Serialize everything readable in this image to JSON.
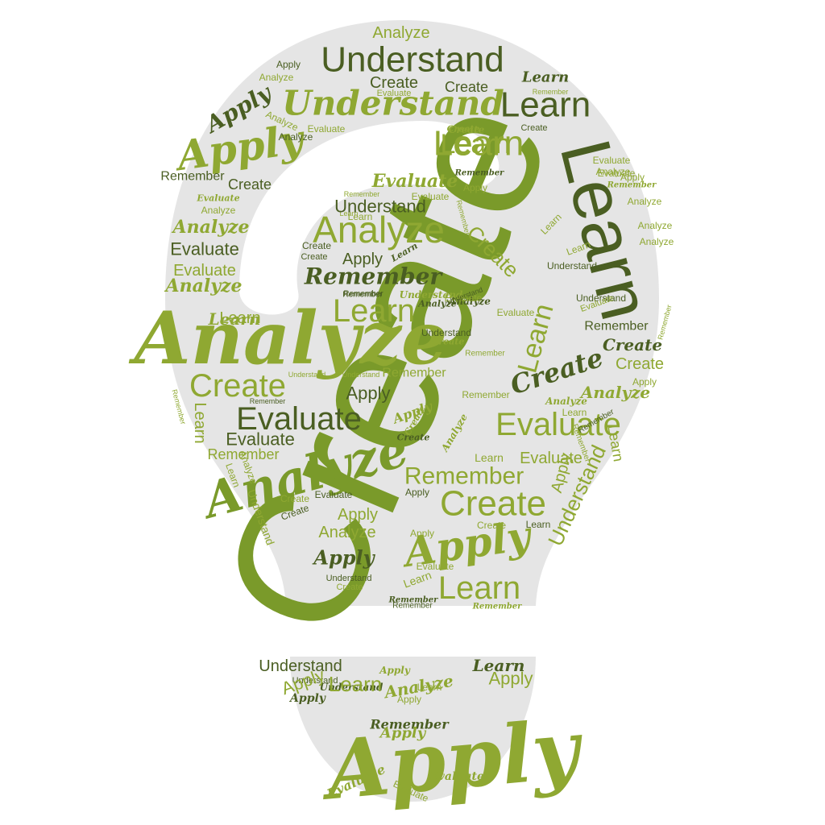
{
  "colors": {
    "background": "#ffffff",
    "shape": "#e5e5e5",
    "green_light": "#8fa832",
    "green_mid": "#7a9a2a",
    "green_dark": "#4a5e22"
  },
  "words": [
    {
      "text": "Create",
      "style": "sans",
      "size": 230,
      "color": "#7a9a2a",
      "rot": -67
    },
    {
      "text": "Analyze",
      "style": "script",
      "size": 90,
      "color": "#8fa832",
      "rot": 0
    },
    {
      "text": "Learn",
      "style": "sans",
      "size": 88,
      "color": "#4a5e22",
      "rot": 76
    },
    {
      "text": "Understand",
      "style": "sans",
      "size": 44,
      "color": "#4a5e22",
      "rot": 0
    },
    {
      "text": "Understand",
      "style": "script",
      "size": 42,
      "color": "#8fa832",
      "rot": 0
    },
    {
      "text": "Learn",
      "style": "sans",
      "size": 44,
      "color": "#4a5e22",
      "rot": 0
    },
    {
      "text": "Learn",
      "style": "sans",
      "size": 44,
      "color": "#8fa832",
      "rot": 0
    },
    {
      "text": "Apply",
      "style": "script",
      "size": 50,
      "color": "#8fa832",
      "rot": -8
    },
    {
      "text": "Apply",
      "style": "script",
      "size": 28,
      "color": "#4a5e22",
      "rot": -30
    },
    {
      "text": "Analyze",
      "style": "sans",
      "size": 20,
      "color": "#8fa832",
      "rot": 0
    },
    {
      "text": "Apply",
      "style": "sans",
      "size": 12,
      "color": "#4a5e22",
      "rot": 0
    },
    {
      "text": "Analyze",
      "style": "sans",
      "size": 12,
      "color": "#8fa832",
      "rot": 0
    },
    {
      "text": "Learn",
      "style": "script",
      "size": 18,
      "color": "#4a5e22",
      "rot": 0
    },
    {
      "text": "Create",
      "style": "sans",
      "size": 18,
      "color": "#4a5e22",
      "rot": 0
    },
    {
      "text": "Create",
      "style": "sans",
      "size": 20,
      "color": "#4a5e22",
      "rot": 0
    },
    {
      "text": "Evaluate",
      "style": "sans",
      "size": 11,
      "color": "#8fa832",
      "rot": 0
    },
    {
      "text": "Create",
      "style": "sans",
      "size": 11,
      "color": "#4a5e22",
      "rot": 0
    },
    {
      "text": "Evaluate",
      "style": "sans",
      "size": 12,
      "color": "#8fa832",
      "rot": 0
    },
    {
      "text": "Create",
      "style": "script",
      "size": 11,
      "color": "#8fa832",
      "rot": 0
    },
    {
      "text": "Remember",
      "style": "sans",
      "size": 9,
      "color": "#8fa832",
      "rot": 0
    },
    {
      "text": "Analyze",
      "style": "sans",
      "size": 12,
      "color": "#8fa832",
      "rot": 25
    },
    {
      "text": "Evaluate",
      "style": "sans",
      "size": 12,
      "color": "#8fa832",
      "rot": 0
    },
    {
      "text": "Analyze",
      "style": "sans",
      "size": 12,
      "color": "#4a5e22",
      "rot": 0
    },
    {
      "text": "Create",
      "style": "script",
      "size": 12,
      "color": "#8fa832",
      "rot": 0
    },
    {
      "text": "Learn",
      "style": "sans",
      "size": 34,
      "color": "#8fa832",
      "rot": 0
    },
    {
      "text": "Remember",
      "style": "sans",
      "size": 16,
      "color": "#4a5e22",
      "rot": 0
    },
    {
      "text": "Evaluate",
      "style": "sans",
      "size": 12,
      "color": "#8fa832",
      "rot": 0
    },
    {
      "text": "Remember",
      "style": "script",
      "size": 10,
      "color": "#4a5e22",
      "rot": 0
    },
    {
      "text": "Create",
      "style": "sans",
      "size": 18,
      "color": "#4a5e22",
      "rot": 0
    },
    {
      "text": "Evaluate",
      "style": "script",
      "size": 11,
      "color": "#8fa832",
      "rot": 0
    },
    {
      "text": "Remember",
      "style": "script",
      "size": 10,
      "color": "#8fa832",
      "rot": 0
    },
    {
      "text": "Analyze",
      "style": "sans",
      "size": 12,
      "color": "#8fa832",
      "rot": 0
    },
    {
      "text": "Apply",
      "style": "sans",
      "size": 12,
      "color": "#8fa832",
      "rot": 0
    },
    {
      "text": "Analyze",
      "style": "sans",
      "size": 12,
      "color": "#8fa832",
      "rot": 0
    },
    {
      "text": "Apply",
      "style": "sans",
      "size": 12,
      "color": "#8fa832",
      "rot": 0
    },
    {
      "text": "Analyze",
      "style": "sans",
      "size": 12,
      "color": "#8fa832",
      "rot": 0
    },
    {
      "text": "Analyze",
      "style": "sans",
      "size": 12,
      "color": "#8fa832",
      "rot": 0
    },
    {
      "text": "Evaluate",
      "style": "script",
      "size": 22,
      "color": "#8fa832",
      "rot": 0
    },
    {
      "text": "Evaluate",
      "style": "sans",
      "size": 12,
      "color": "#8fa832",
      "rot": 0
    },
    {
      "text": "Analyze",
      "style": "sans",
      "size": 12,
      "color": "#8fa832",
      "rot": 0
    },
    {
      "text": "Remember",
      "style": "sans",
      "size": 9,
      "color": "#8fa832",
      "rot": 0
    },
    {
      "text": "Learn",
      "style": "sans",
      "size": 9,
      "color": "#8fa832",
      "rot": 0
    },
    {
      "text": "Remember",
      "style": "sans",
      "size": 9,
      "color": "#8fa832",
      "rot": 75
    },
    {
      "text": "Understand",
      "style": "sans",
      "size": 22,
      "color": "#4a5e22",
      "rot": 0
    },
    {
      "text": "Analyze",
      "style": "sans",
      "size": 46,
      "color": "#8fa832",
      "rot": 0
    },
    {
      "text": "Learn",
      "style": "sans",
      "size": 12,
      "color": "#8fa832",
      "rot": 0
    },
    {
      "text": "Create",
      "style": "sans",
      "size": 12,
      "color": "#4a5e22",
      "rot": 0
    },
    {
      "text": "Create",
      "style": "sans",
      "size": 11,
      "color": "#4a5e22",
      "rot": 0
    },
    {
      "text": "Apply",
      "style": "sans",
      "size": 20,
      "color": "#4a5e22",
      "rot": 0
    },
    {
      "text": "Learn",
      "style": "script",
      "size": 11,
      "color": "#4a5e22",
      "rot": -30
    },
    {
      "text": "Create",
      "style": "sans",
      "size": 26,
      "color": "#8fa832",
      "rot": 45
    },
    {
      "text": "Learn",
      "style": "sans",
      "size": 12,
      "color": "#8fa832",
      "rot": -45
    },
    {
      "text": "Learn",
      "style": "sans",
      "size": 12,
      "color": "#8fa832",
      "rot": -20
    },
    {
      "text": "Remember",
      "style": "script",
      "size": 28,
      "color": "#4a5e22",
      "rot": 0
    },
    {
      "text": "Understand",
      "style": "sans",
      "size": 12,
      "color": "#4a5e22",
      "rot": 0
    },
    {
      "text": "Evaluate",
      "style": "sans",
      "size": 22,
      "color": "#4a5e22",
      "rot": 0
    },
    {
      "text": "Understand",
      "style": "sans",
      "size": 12,
      "color": "#4a5e22",
      "rot": 0
    },
    {
      "text": "Analyze",
      "style": "script",
      "size": 22,
      "color": "#8fa832",
      "rot": 0
    },
    {
      "text": "Evaluate",
      "style": "sans",
      "size": 20,
      "color": "#8fa832",
      "rot": 0
    },
    {
      "text": "Analyze",
      "style": "script",
      "size": 22,
      "color": "#8fa832",
      "rot": 0
    },
    {
      "text": "Learn",
      "style": "sans",
      "size": 20,
      "color": "#8fa832",
      "rot": 0
    },
    {
      "text": "Remember",
      "style": "sans",
      "size": 10,
      "color": "#4a5e22",
      "rot": 0
    },
    {
      "text": "Understand",
      "style": "script",
      "size": 12,
      "color": "#8fa832",
      "rot": 0
    },
    {
      "text": "Learn",
      "style": "sans",
      "size": 40,
      "color": "#8fa832",
      "rot": 0
    },
    {
      "text": "Learn",
      "style": "script",
      "size": 20,
      "color": "#8fa832",
      "rot": 0
    },
    {
      "text": "Analyze",
      "style": "script",
      "size": 12,
      "color": "#4a5e22",
      "rot": 0
    },
    {
      "text": "Evaluate",
      "style": "sans",
      "size": 12,
      "color": "#8fa832",
      "rot": 0
    },
    {
      "text": "Remember",
      "style": "sans",
      "size": 16,
      "color": "#4a5e22",
      "rot": 0
    },
    {
      "text": "Learn",
      "style": "sans",
      "size": 34,
      "color": "#8fa832",
      "rot": -75
    },
    {
      "text": "Analyze",
      "style": "script",
      "size": 11,
      "color": "#4a5e22",
      "rot": 0
    },
    {
      "text": "Evaluate",
      "style": "sans",
      "size": 12,
      "color": "#8fa832",
      "rot": 0
    },
    {
      "text": "Remember",
      "style": "sans",
      "size": 9,
      "color": "#8fa832",
      "rot": -75
    },
    {
      "text": "Evaluate",
      "style": "sans",
      "size": 11,
      "color": "#8fa832",
      "rot": -20
    },
    {
      "text": "Remember",
      "style": "sans",
      "size": 10,
      "color": "#4a5e22",
      "rot": 0
    },
    {
      "text": "Understand",
      "style": "sans",
      "size": 9,
      "color": "#4a5e22",
      "rot": -20
    },
    {
      "text": "Create",
      "style": "script",
      "size": 11,
      "color": "#8fa832",
      "rot": 0
    },
    {
      "text": "Understand",
      "style": "sans",
      "size": 12,
      "color": "#4a5e22",
      "rot": 0
    },
    {
      "text": "Remember",
      "style": "sans",
      "size": 10,
      "color": "#8fa832",
      "rot": 0
    },
    {
      "text": "Create",
      "style": "script",
      "size": 32,
      "color": "#4a5e22",
      "rot": -18
    },
    {
      "text": "Create",
      "style": "script",
      "size": 20,
      "color": "#4a5e22",
      "rot": 0
    },
    {
      "text": "Create",
      "style": "sans",
      "size": 20,
      "color": "#8fa832",
      "rot": 0
    },
    {
      "text": "Apply",
      "style": "sans",
      "size": 12,
      "color": "#8fa832",
      "rot": 0
    },
    {
      "text": "Analyze",
      "style": "script",
      "size": 20,
      "color": "#8fa832",
      "rot": 0
    },
    {
      "text": "Analyze",
      "style": "script",
      "size": 12,
      "color": "#8fa832",
      "rot": 0
    },
    {
      "text": "Learn",
      "style": "sans",
      "size": 12,
      "color": "#8fa832",
      "rot": 0
    },
    {
      "text": "Evaluate",
      "style": "sans",
      "size": 40,
      "color": "#8fa832",
      "rot": 0
    },
    {
      "text": "Create",
      "style": "sans",
      "size": 40,
      "color": "#8fa832",
      "rot": 0
    },
    {
      "text": "Evaluate",
      "style": "sans",
      "size": 40,
      "color": "#4a5e22",
      "rot": 0
    },
    {
      "text": "Remember",
      "style": "sans",
      "size": 16,
      "color": "#8fa832",
      "rot": 0
    },
    {
      "text": "Understand",
      "style": "sans",
      "size": 9,
      "color": "#8fa832",
      "rot": 0
    },
    {
      "text": "Understand",
      "style": "sans",
      "size": 9,
      "color": "#8fa832",
      "rot": 0
    },
    {
      "text": "Remember",
      "style": "sans",
      "size": 12,
      "color": "#8fa832",
      "rot": 0
    },
    {
      "text": "Apply",
      "style": "sans",
      "size": 22,
      "color": "#4a5e22",
      "rot": 0
    },
    {
      "text": "Remember",
      "style": "sans",
      "size": 9,
      "color": "#4a5e22",
      "rot": 0
    },
    {
      "text": "Evaluate",
      "style": "sans",
      "size": 22,
      "color": "#4a5e22",
      "rot": 0
    },
    {
      "text": "Remember",
      "style": "sans",
      "size": 18,
      "color": "#8fa832",
      "rot": 0
    },
    {
      "text": "Learn",
      "style": "sans",
      "size": 20,
      "color": "#8fa832",
      "rot": 90
    },
    {
      "text": "Remember",
      "style": "sans",
      "size": 9,
      "color": "#8fa832",
      "rot": 75
    },
    {
      "text": "Analyze",
      "style": "script",
      "size": 60,
      "color": "#7a9a2a",
      "rot": -15
    },
    {
      "text": "Create",
      "style": "script",
      "size": 11,
      "color": "#4a5e22",
      "rot": 0
    },
    {
      "text": "Analyze",
      "style": "script",
      "size": 12,
      "color": "#8fa832",
      "rot": -60
    },
    {
      "text": "Create",
      "style": "script",
      "size": 11,
      "color": "#8fa832",
      "rot": -60
    },
    {
      "text": "Evaluate",
      "style": "sans",
      "size": 20,
      "color": "#8fa832",
      "rot": 0
    },
    {
      "text": "Remember",
      "style": "sans",
      "size": 30,
      "color": "#8fa832",
      "rot": 0
    },
    {
      "text": "Create",
      "style": "sans",
      "size": 44,
      "color": "#8fa832",
      "rot": 0
    },
    {
      "text": "Apply",
      "style": "sans",
      "size": 12,
      "color": "#4a5e22",
      "rot": 0
    },
    {
      "text": "Evaluate",
      "style": "sans",
      "size": 12,
      "color": "#4a5e22",
      "rot": 0
    },
    {
      "text": "Create",
      "style": "sans",
      "size": 12,
      "color": "#4a5e22",
      "rot": -20
    },
    {
      "text": "Create",
      "style": "sans",
      "size": 12,
      "color": "#8fa832",
      "rot": 0
    },
    {
      "text": "Apply",
      "style": "sans",
      "size": 20,
      "color": "#8fa832",
      "rot": 0
    },
    {
      "text": "Analyze",
      "style": "sans",
      "size": 20,
      "color": "#8fa832",
      "rot": 0
    },
    {
      "text": "Apply",
      "style": "script",
      "size": 24,
      "color": "#4a5e22",
      "rot": 0
    },
    {
      "text": "Understand",
      "style": "sans",
      "size": 11,
      "color": "#4a5e22",
      "rot": 0
    },
    {
      "text": "Create",
      "style": "sans",
      "size": 11,
      "color": "#8fa832",
      "rot": 0
    },
    {
      "text": "Apply",
      "style": "script",
      "size": 50,
      "color": "#8fa832",
      "rot": -8
    },
    {
      "text": "Learn",
      "style": "sans",
      "size": 40,
      "color": "#8fa832",
      "rot": 0
    },
    {
      "text": "Evaluate",
      "style": "sans",
      "size": 12,
      "color": "#8fa832",
      "rot": 0
    },
    {
      "text": "Learn",
      "style": "sans",
      "size": 14,
      "color": "#8fa832",
      "rot": -20
    },
    {
      "text": "Remember",
      "style": "script",
      "size": 10,
      "color": "#4a5e22",
      "rot": 0
    },
    {
      "text": "Remember",
      "style": "sans",
      "size": 10,
      "color": "#4a5e22",
      "rot": 0
    },
    {
      "text": "Remember",
      "style": "script",
      "size": 10,
      "color": "#8fa832",
      "rot": 0
    },
    {
      "text": "Create",
      "style": "sans",
      "size": 12,
      "color": "#8fa832",
      "rot": 0
    },
    {
      "text": "Learn",
      "style": "sans",
      "size": 12,
      "color": "#4a5e22",
      "rot": 0
    },
    {
      "text": "Understand",
      "style": "sans",
      "size": 26,
      "color": "#8fa832",
      "rot": -65
    },
    {
      "text": "Apply",
      "style": "sans",
      "size": 20,
      "color": "#8fa832",
      "rot": -75
    },
    {
      "text": "Understand",
      "style": "sans",
      "size": 14,
      "color": "#8fa832",
      "rot": 70
    },
    {
      "text": "Learn",
      "style": "sans",
      "size": 12,
      "color": "#8fa832",
      "rot": 70
    },
    {
      "text": "Analyze",
      "style": "sans",
      "size": 12,
      "color": "#8fa832",
      "rot": 70
    },
    {
      "text": "Learn",
      "style": "sans",
      "size": 18,
      "color": "#8fa832",
      "rot": 80
    },
    {
      "text": "Remember",
      "style": "sans",
      "size": 10,
      "color": "#8fa832",
      "rot": 70
    },
    {
      "text": "Learn",
      "style": "sans",
      "size": 14,
      "color": "#8fa832",
      "rot": 0
    },
    {
      "text": "Remember",
      "style": "sans",
      "size": 10,
      "color": "#4a5e22",
      "rot": -30
    },
    {
      "text": "Apply",
      "style": "sans",
      "size": 12,
      "color": "#8fa832",
      "rot": 0
    },
    {
      "text": "Understand",
      "style": "sans",
      "size": 11,
      "color": "#4a5e22",
      "rot": 0
    },
    {
      "text": "Apply",
      "style": "script",
      "size": 12,
      "color": "#8fa832",
      "rot": 0
    },
    {
      "text": "Understand",
      "style": "sans",
      "size": 20,
      "color": "#4a5e22",
      "rot": 0
    },
    {
      "text": "Understand",
      "style": "script",
      "size": 12,
      "color": "#4a5e22",
      "rot": 0
    },
    {
      "text": "Learn",
      "style": "sans",
      "size": 12,
      "color": "#8fa832",
      "rot": 0
    },
    {
      "text": "Learn",
      "style": "script",
      "size": 20,
      "color": "#4a5e22",
      "rot": 0
    },
    {
      "text": "Apply",
      "style": "sans",
      "size": 22,
      "color": "#8fa832",
      "rot": 0
    },
    {
      "text": "Apply",
      "style": "script",
      "size": 14,
      "color": "#4a5e22",
      "rot": 0
    },
    {
      "text": "Apply",
      "style": "sans",
      "size": 12,
      "color": "#8fa832",
      "rot": 0
    },
    {
      "text": "Remember",
      "style": "script",
      "size": 16,
      "color": "#4a5e22",
      "rot": 0
    },
    {
      "text": "Apply",
      "style": "script",
      "size": 100,
      "color": "#8fa832",
      "rot": -5
    },
    {
      "text": "Evaluate",
      "style": "script",
      "size": 16,
      "color": "#8fa832",
      "rot": -25
    },
    {
      "text": "Evaluate",
      "style": "sans",
      "size": 12,
      "color": "#8fa832",
      "rot": 25
    },
    {
      "text": "Evaluate",
      "style": "script",
      "size": 14,
      "color": "#8fa832",
      "rot": 0
    },
    {
      "text": "Apply",
      "style": "sans",
      "size": 22,
      "color": "#8fa832",
      "rot": -20
    },
    {
      "text": "Learn",
      "style": "sans",
      "size": 26,
      "color": "#8fa832",
      "rot": 0
    },
    {
      "text": "Analyze",
      "style": "script",
      "size": 20,
      "color": "#8fa832",
      "rot": -10
    },
    {
      "text": "Apply",
      "style": "script",
      "size": 18,
      "color": "#8fa832",
      "rot": 0
    },
    {
      "text": "Apply",
      "style": "script",
      "size": 16,
      "color": "#8fa832",
      "rot": -20
    }
  ]
}
